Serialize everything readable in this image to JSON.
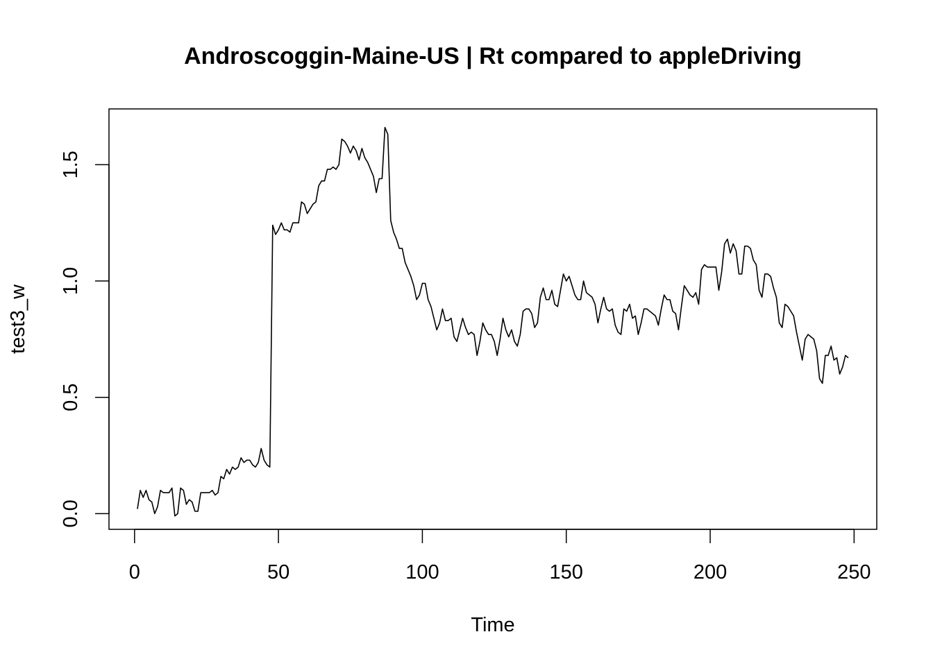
{
  "chart_data": {
    "type": "line",
    "title": "Androscoggin-Maine-US | Rt compared to appleDriving",
    "xlabel": "Time",
    "ylabel": "test3_w",
    "xlim": [
      -8.88,
      257.88
    ],
    "ylim": [
      -0.0675,
      1.7397
    ],
    "x_ticks": [
      0,
      50,
      100,
      150,
      200,
      250
    ],
    "x_tick_labels": [
      "0",
      "50",
      "100",
      "150",
      "200",
      "250"
    ],
    "y_ticks": [
      0.0,
      0.5,
      1.0,
      1.5
    ],
    "y_tick_labels": [
      "0.0",
      "0.5",
      "1.0",
      "1.5"
    ],
    "grid": false,
    "line_color": "#000000",
    "series": [
      {
        "x_start": 1,
        "values": [
          0.02,
          0.1,
          0.07,
          0.1,
          0.06,
          0.05,
          0.0,
          0.03,
          0.1,
          0.09,
          0.09,
          0.09,
          0.11,
          -0.01,
          0.0,
          0.11,
          0.1,
          0.04,
          0.06,
          0.05,
          0.01,
          0.01,
          0.09,
          0.09,
          0.09,
          0.09,
          0.1,
          0.08,
          0.09,
          0.16,
          0.15,
          0.19,
          0.17,
          0.2,
          0.19,
          0.2,
          0.24,
          0.22,
          0.23,
          0.23,
          0.21,
          0.2,
          0.22,
          0.28,
          0.23,
          0.21,
          0.2,
          1.24,
          1.2,
          1.22,
          1.25,
          1.22,
          1.22,
          1.21,
          1.25,
          1.25,
          1.25,
          1.34,
          1.33,
          1.29,
          1.31,
          1.33,
          1.34,
          1.41,
          1.43,
          1.43,
          1.48,
          1.48,
          1.49,
          1.48,
          1.5,
          1.61,
          1.6,
          1.58,
          1.55,
          1.58,
          1.56,
          1.52,
          1.57,
          1.53,
          1.51,
          1.48,
          1.45,
          1.38,
          1.44,
          1.44,
          1.66,
          1.63,
          1.26,
          1.21,
          1.18,
          1.14,
          1.14,
          1.08,
          1.05,
          1.02,
          0.98,
          0.92,
          0.94,
          0.99,
          0.99,
          0.92,
          0.89,
          0.84,
          0.79,
          0.82,
          0.88,
          0.83,
          0.83,
          0.84,
          0.76,
          0.74,
          0.79,
          0.84,
          0.8,
          0.77,
          0.78,
          0.77,
          0.68,
          0.74,
          0.82,
          0.79,
          0.77,
          0.77,
          0.74,
          0.68,
          0.75,
          0.84,
          0.79,
          0.76,
          0.79,
          0.74,
          0.72,
          0.77,
          0.87,
          0.88,
          0.88,
          0.86,
          0.8,
          0.82,
          0.93,
          0.97,
          0.92,
          0.92,
          0.96,
          0.9,
          0.89,
          0.96,
          1.03,
          1.0,
          1.02,
          0.98,
          0.94,
          0.92,
          0.92,
          1.0,
          0.95,
          0.94,
          0.93,
          0.9,
          0.82,
          0.88,
          0.93,
          0.88,
          0.87,
          0.88,
          0.81,
          0.78,
          0.77,
          0.88,
          0.87,
          0.9,
          0.84,
          0.85,
          0.77,
          0.82,
          0.88,
          0.88,
          0.87,
          0.86,
          0.85,
          0.81,
          0.88,
          0.94,
          0.92,
          0.92,
          0.87,
          0.86,
          0.79,
          0.89,
          0.98,
          0.96,
          0.94,
          0.93,
          0.95,
          0.9,
          1.05,
          1.07,
          1.06,
          1.06,
          1.06,
          1.06,
          0.96,
          1.04,
          1.16,
          1.18,
          1.12,
          1.16,
          1.13,
          1.03,
          1.03,
          1.15,
          1.15,
          1.14,
          1.09,
          1.07,
          0.96,
          0.93,
          1.03,
          1.03,
          1.02,
          0.97,
          0.93,
          0.82,
          0.8,
          0.9,
          0.89,
          0.87,
          0.85,
          0.78,
          0.72,
          0.66,
          0.75,
          0.77,
          0.76,
          0.75,
          0.7,
          0.58,
          0.56,
          0.68,
          0.68,
          0.72,
          0.66,
          0.67,
          0.6,
          0.63,
          0.68,
          0.67
        ]
      }
    ]
  }
}
